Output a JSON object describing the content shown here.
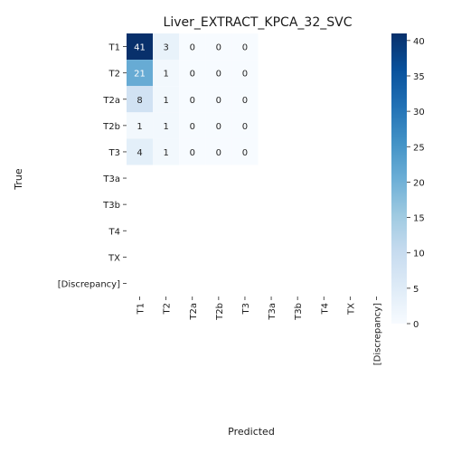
{
  "chart_data": {
    "type": "heatmap",
    "title": "Liver_EXTRACT_KPCA_32_SVC",
    "xlabel": "Predicted",
    "ylabel": "True",
    "row_labels": [
      "T1",
      "T2",
      "T2a",
      "T2b",
      "T3",
      "T3a",
      "T3b",
      "T4",
      "TX",
      "[Discrepancy]"
    ],
    "col_labels": [
      "T1",
      "T2",
      "T2a",
      "T2b",
      "T3",
      "T3a",
      "T3b",
      "T4",
      "TX",
      "[Discrepancy]"
    ],
    "values": [
      [
        41,
        3,
        0,
        0,
        0,
        null,
        null,
        null,
        null,
        null
      ],
      [
        21,
        1,
        0,
        0,
        0,
        null,
        null,
        null,
        null,
        null
      ],
      [
        8,
        1,
        0,
        0,
        0,
        null,
        null,
        null,
        null,
        null
      ],
      [
        1,
        1,
        0,
        0,
        0,
        null,
        null,
        null,
        null,
        null
      ],
      [
        4,
        1,
        0,
        0,
        0,
        null,
        null,
        null,
        null,
        null
      ],
      [
        null,
        null,
        null,
        null,
        null,
        null,
        null,
        null,
        null,
        null
      ],
      [
        null,
        null,
        null,
        null,
        null,
        null,
        null,
        null,
        null,
        null
      ],
      [
        null,
        null,
        null,
        null,
        null,
        null,
        null,
        null,
        null,
        null
      ],
      [
        null,
        null,
        null,
        null,
        null,
        null,
        null,
        null,
        null,
        null
      ],
      [
        null,
        null,
        null,
        null,
        null,
        null,
        null,
        null,
        null,
        null
      ]
    ],
    "colorbar": {
      "min": 0,
      "max": 41,
      "ticks": [
        0,
        5,
        10,
        15,
        20,
        25,
        30,
        35,
        40
      ],
      "colormap": "Blues",
      "colors": [
        "#f7fbff",
        "#deebf7",
        "#c6dbef",
        "#9ecae1",
        "#6baed6",
        "#4292c6",
        "#2171b5",
        "#08519c",
        "#08306b"
      ]
    }
  }
}
